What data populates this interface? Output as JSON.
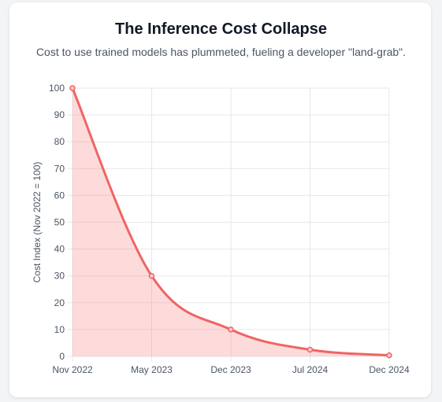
{
  "header": {
    "title": "The Inference Cost Collapse",
    "subtitle": "Cost to use trained models has plummeted, fueling a developer \"land-grab\"."
  },
  "chart_data": {
    "type": "area",
    "categories": [
      "Nov 2022",
      "May 2023",
      "Dec 2023",
      "Jul 2024",
      "Dec 2024"
    ],
    "series": [
      {
        "values": [
          100,
          30,
          10,
          2.5,
          0.4
        ]
      }
    ],
    "title": "The Inference Cost Collapse",
    "xlabel": "",
    "ylabel": "Cost Index (Nov 2022 = 100)",
    "ylim": [
      0,
      100
    ],
    "yticks": [
      0,
      10,
      20,
      30,
      40,
      50,
      60,
      70,
      80,
      90,
      100
    ],
    "grid": true,
    "legend": "none"
  },
  "colors": {
    "line": "#f06464",
    "fill": "rgba(248, 113, 113, 0.25)",
    "grid": "#e5e7eb",
    "tick_text": "#4b5563"
  }
}
